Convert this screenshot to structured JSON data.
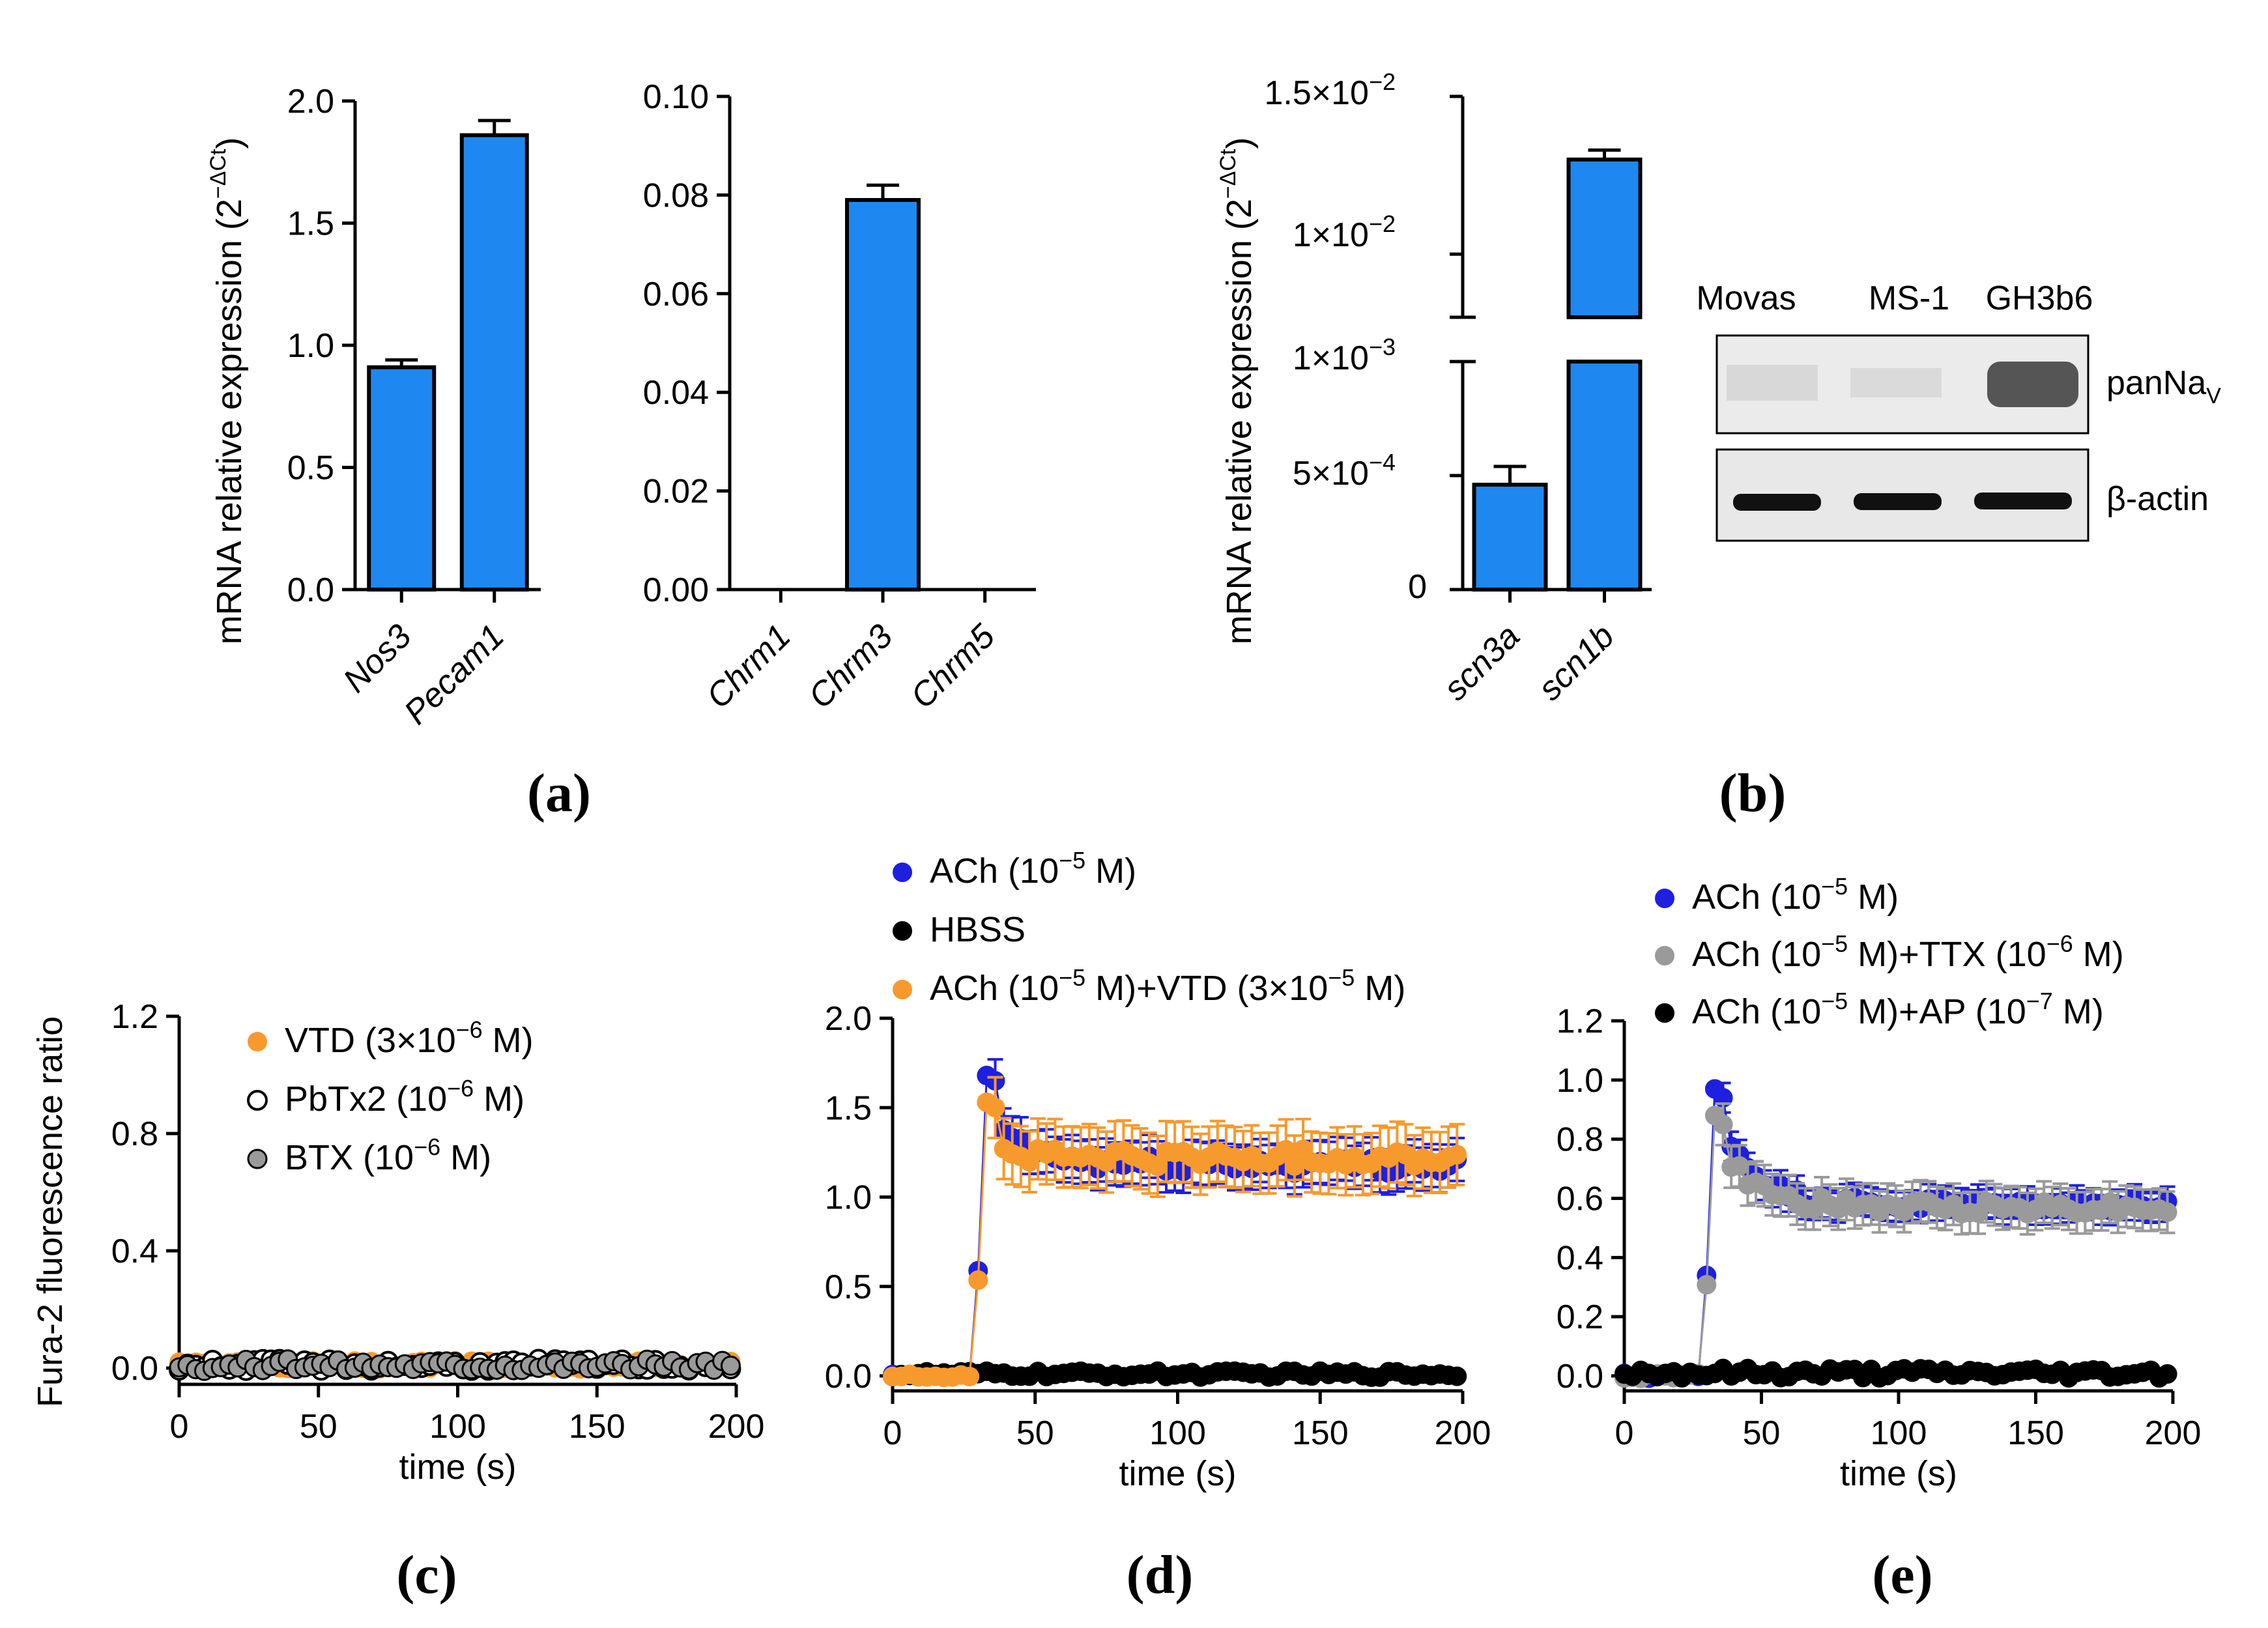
{
  "colors": {
    "bar": "#1e88f0",
    "ach_blue": "#1f1fe0",
    "black": "#000000",
    "orange": "#f79a2e",
    "gray": "#9a9a9a",
    "open_circle": "#ffffff"
  },
  "panel_labels": {
    "a": "(a)",
    "b": "(b)",
    "c": "(c)",
    "d": "(d)",
    "e": "(e)"
  },
  "superscripts": {
    "delta_ct": "−ΔCt",
    "minus2": "−2",
    "minus3": "−3",
    "minus4": "−4",
    "minus5": "−5",
    "minus6": "−6",
    "minus7": "−7"
  },
  "western_blot": {
    "lanes": [
      "Movas",
      "MS-1",
      "GH3b6"
    ],
    "band_labels": {
      "panNav": "panNa",
      "panNav_sub": "V",
      "actin": "β-actin"
    }
  },
  "chart_data": [
    {
      "id": "a1",
      "type": "bar",
      "ylabel": "mRNA relative expression (2",
      "ylabel_close": ")",
      "categories": [
        "Nos3",
        "Pecam1"
      ],
      "values": [
        0.91,
        1.86
      ],
      "errors": [
        0.03,
        0.06
      ],
      "ylim": [
        0,
        2.0
      ],
      "yticks": [
        "0.0",
        "0.5",
        "1.0",
        "1.5",
        "2.0"
      ]
    },
    {
      "id": "a2",
      "type": "bar",
      "categories": [
        "Chrm1",
        "Chrm3",
        "Chrm5"
      ],
      "values": [
        0,
        0.079,
        0
      ],
      "errors": [
        0,
        0.003,
        0
      ],
      "ylim": [
        0,
        0.1
      ],
      "yticks": [
        "0.00",
        "0.02",
        "0.04",
        "0.06",
        "0.08",
        "0.10"
      ]
    },
    {
      "id": "b",
      "type": "bar",
      "ylabel": "mRNA relative expression (2",
      "ylabel_close": ")",
      "categories": [
        "scn3a",
        "scn1b"
      ],
      "values": [
        0.00046,
        0.013
      ],
      "errors": [
        8e-05,
        0.0003
      ],
      "y_break": {
        "lower": [
          0,
          0.001
        ],
        "upper": [
          0.008,
          0.015
        ]
      },
      "yticks": [
        "0",
        "5×10",
        "1×10",
        "1×10",
        "1.5×10"
      ]
    },
    {
      "id": "c",
      "type": "scatter",
      "ylabel": "Fura-2 fluorescence ratio",
      "xlabel": "time (s)",
      "xlim": [
        0,
        200
      ],
      "ylim": [
        0,
        1.2
      ],
      "xticks": [
        "0",
        "50",
        "100",
        "150",
        "200"
      ],
      "yticks": [
        "0.0",
        "0.4",
        "0.8",
        "1.2"
      ],
      "legend": [
        {
          "label": "VTD (3×10",
          "exp": "−6",
          "tail": " M)"
        },
        {
          "label": "PbTx2 (10",
          "exp": "−6",
          "tail": " M)"
        },
        {
          "label": "BTX (10",
          "exp": "−6",
          "tail": " M)"
        }
      ],
      "series": [
        {
          "name": "VTD (3×10−6 M)",
          "baseline": 0.01,
          "jitter": 0.015
        },
        {
          "name": "PbTx2 (10−6 M)",
          "baseline": 0.01,
          "jitter": 0.02
        },
        {
          "name": "BTX (10−6 M)",
          "baseline": 0.01,
          "jitter": 0.02
        }
      ]
    },
    {
      "id": "d",
      "type": "scatter",
      "xlabel": "time (s)",
      "xlim": [
        0,
        200
      ],
      "ylim": [
        0,
        2.0
      ],
      "xticks": [
        "0",
        "50",
        "100",
        "150",
        "200"
      ],
      "yticks": [
        "0.0",
        "0.5",
        "1.0",
        "1.5",
        "2.0"
      ],
      "legend": [
        {
          "label": "ACh (10",
          "exp": "−5",
          "tail": " M)"
        },
        {
          "label": "HBSS",
          "exp": "",
          "tail": ""
        },
        {
          "label": "ACh (10",
          "exp": "−5",
          "tail": " M)+VTD (3×10",
          "exp2": "−5",
          "tail2": " M)"
        }
      ],
      "series": [
        {
          "name": "ACh (10−5 M)",
          "baseline": 0.0,
          "onset": 30,
          "peak": 1.68,
          "plateau": 1.18
        },
        {
          "name": "HBSS",
          "baseline": 0.01
        },
        {
          "name": "ACh (10−5 M)+VTD (3×10−5 M)",
          "baseline": 0.0,
          "onset": 30,
          "peak": 1.53,
          "plateau": 1.22
        }
      ]
    },
    {
      "id": "e",
      "type": "scatter",
      "xlabel": "time (s)",
      "xlim": [
        0,
        200
      ],
      "ylim": [
        0,
        1.2
      ],
      "xticks": [
        "0",
        "50",
        "100",
        "150",
        "200"
      ],
      "yticks": [
        "0.0",
        "0.2",
        "0.4",
        "0.6",
        "0.8",
        "1.0",
        "1.2"
      ],
      "legend": [
        {
          "label": "ACh (10",
          "exp": "−5",
          "tail": " M)"
        },
        {
          "label": "ACh (10",
          "exp": "−5",
          "tail": " M)+TTX (10",
          "exp2": "−6",
          "tail2": " M)"
        },
        {
          "label": "ACh (10",
          "exp": "−5",
          "tail": " M)+AP (10",
          "exp2": "−7",
          "tail2": " M)"
        }
      ],
      "series": [
        {
          "name": "ACh (10−5 M)",
          "baseline": 0.0,
          "onset": 30,
          "peak": 0.97,
          "plateau": 0.58
        },
        {
          "name": "ACh (10−5 M)+TTX (10−6 M)",
          "baseline": 0.0,
          "onset": 30,
          "peak": 0.88,
          "plateau": 0.57
        },
        {
          "name": "ACh (10−5 M)+AP (10−7 M)",
          "baseline": 0.01
        }
      ]
    }
  ]
}
